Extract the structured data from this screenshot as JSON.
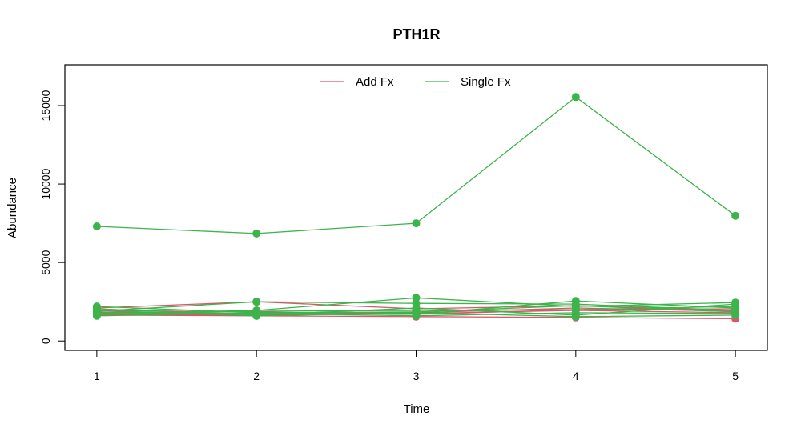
{
  "chart_data": {
    "type": "line",
    "title": "PTH1R",
    "xlabel": "Time",
    "ylabel": "Abundance",
    "x": [
      1,
      2,
      3,
      4,
      5
    ],
    "xticks": [
      1,
      2,
      3,
      4,
      5
    ],
    "yticks": [
      0,
      5000,
      10000,
      15000
    ],
    "xlim": [
      0.8,
      5.2
    ],
    "ylim": [
      -600,
      17600
    ],
    "grid": false,
    "legend_position": "top-center",
    "legend": [
      {
        "name": "Add Fx",
        "color": "#DF536B"
      },
      {
        "name": "Single Fx",
        "color": "#3CB44B"
      }
    ],
    "series": [
      {
        "group": "Add Fx",
        "color": "#DF536B",
        "values": [
          2100,
          2500,
          2050,
          2250,
          1950
        ]
      },
      {
        "group": "Add Fx",
        "color": "#DF536B",
        "values": [
          1700,
          1650,
          1750,
          1950,
          1800
        ]
      },
      {
        "group": "Add Fx",
        "color": "#DF536B",
        "values": [
          1850,
          1750,
          1800,
          2100,
          1900
        ]
      },
      {
        "group": "Add Fx",
        "color": "#DF536B",
        "values": [
          1650,
          1600,
          1550,
          1500,
          1420
        ]
      },
      {
        "group": "Add Fx",
        "color": "#DF536B",
        "values": [
          1950,
          1850,
          1700,
          2000,
          2050
        ]
      },
      {
        "group": "Single Fx",
        "color": "#3CB44B",
        "values": [
          7300,
          6850,
          7500,
          15550,
          7980
        ]
      },
      {
        "group": "Single Fx",
        "color": "#3CB44B",
        "values": [
          2200,
          1800,
          1850,
          2250,
          1850
        ]
      },
      {
        "group": "Single Fx",
        "color": "#3CB44B",
        "values": [
          1900,
          2500,
          2400,
          2350,
          1950
        ]
      },
      {
        "group": "Single Fx",
        "color": "#3CB44B",
        "values": [
          1750,
          1950,
          2750,
          2200,
          2450
        ]
      },
      {
        "group": "Single Fx",
        "color": "#3CB44B",
        "values": [
          1600,
          1800,
          1700,
          2550,
          2100
        ]
      },
      {
        "group": "Single Fx",
        "color": "#3CB44B",
        "values": [
          2050,
          1650,
          2100,
          1650,
          2350
        ]
      },
      {
        "group": "Single Fx",
        "color": "#3CB44B",
        "values": [
          1800,
          1750,
          1600,
          1800,
          1750
        ]
      },
      {
        "group": "Single Fx",
        "color": "#3CB44B",
        "values": [
          1700,
          1900,
          1950,
          2000,
          2200
        ]
      },
      {
        "group": "Single Fx",
        "color": "#3CB44B",
        "values": [
          1950,
          1600,
          1800,
          1550,
          1650
        ]
      }
    ]
  }
}
